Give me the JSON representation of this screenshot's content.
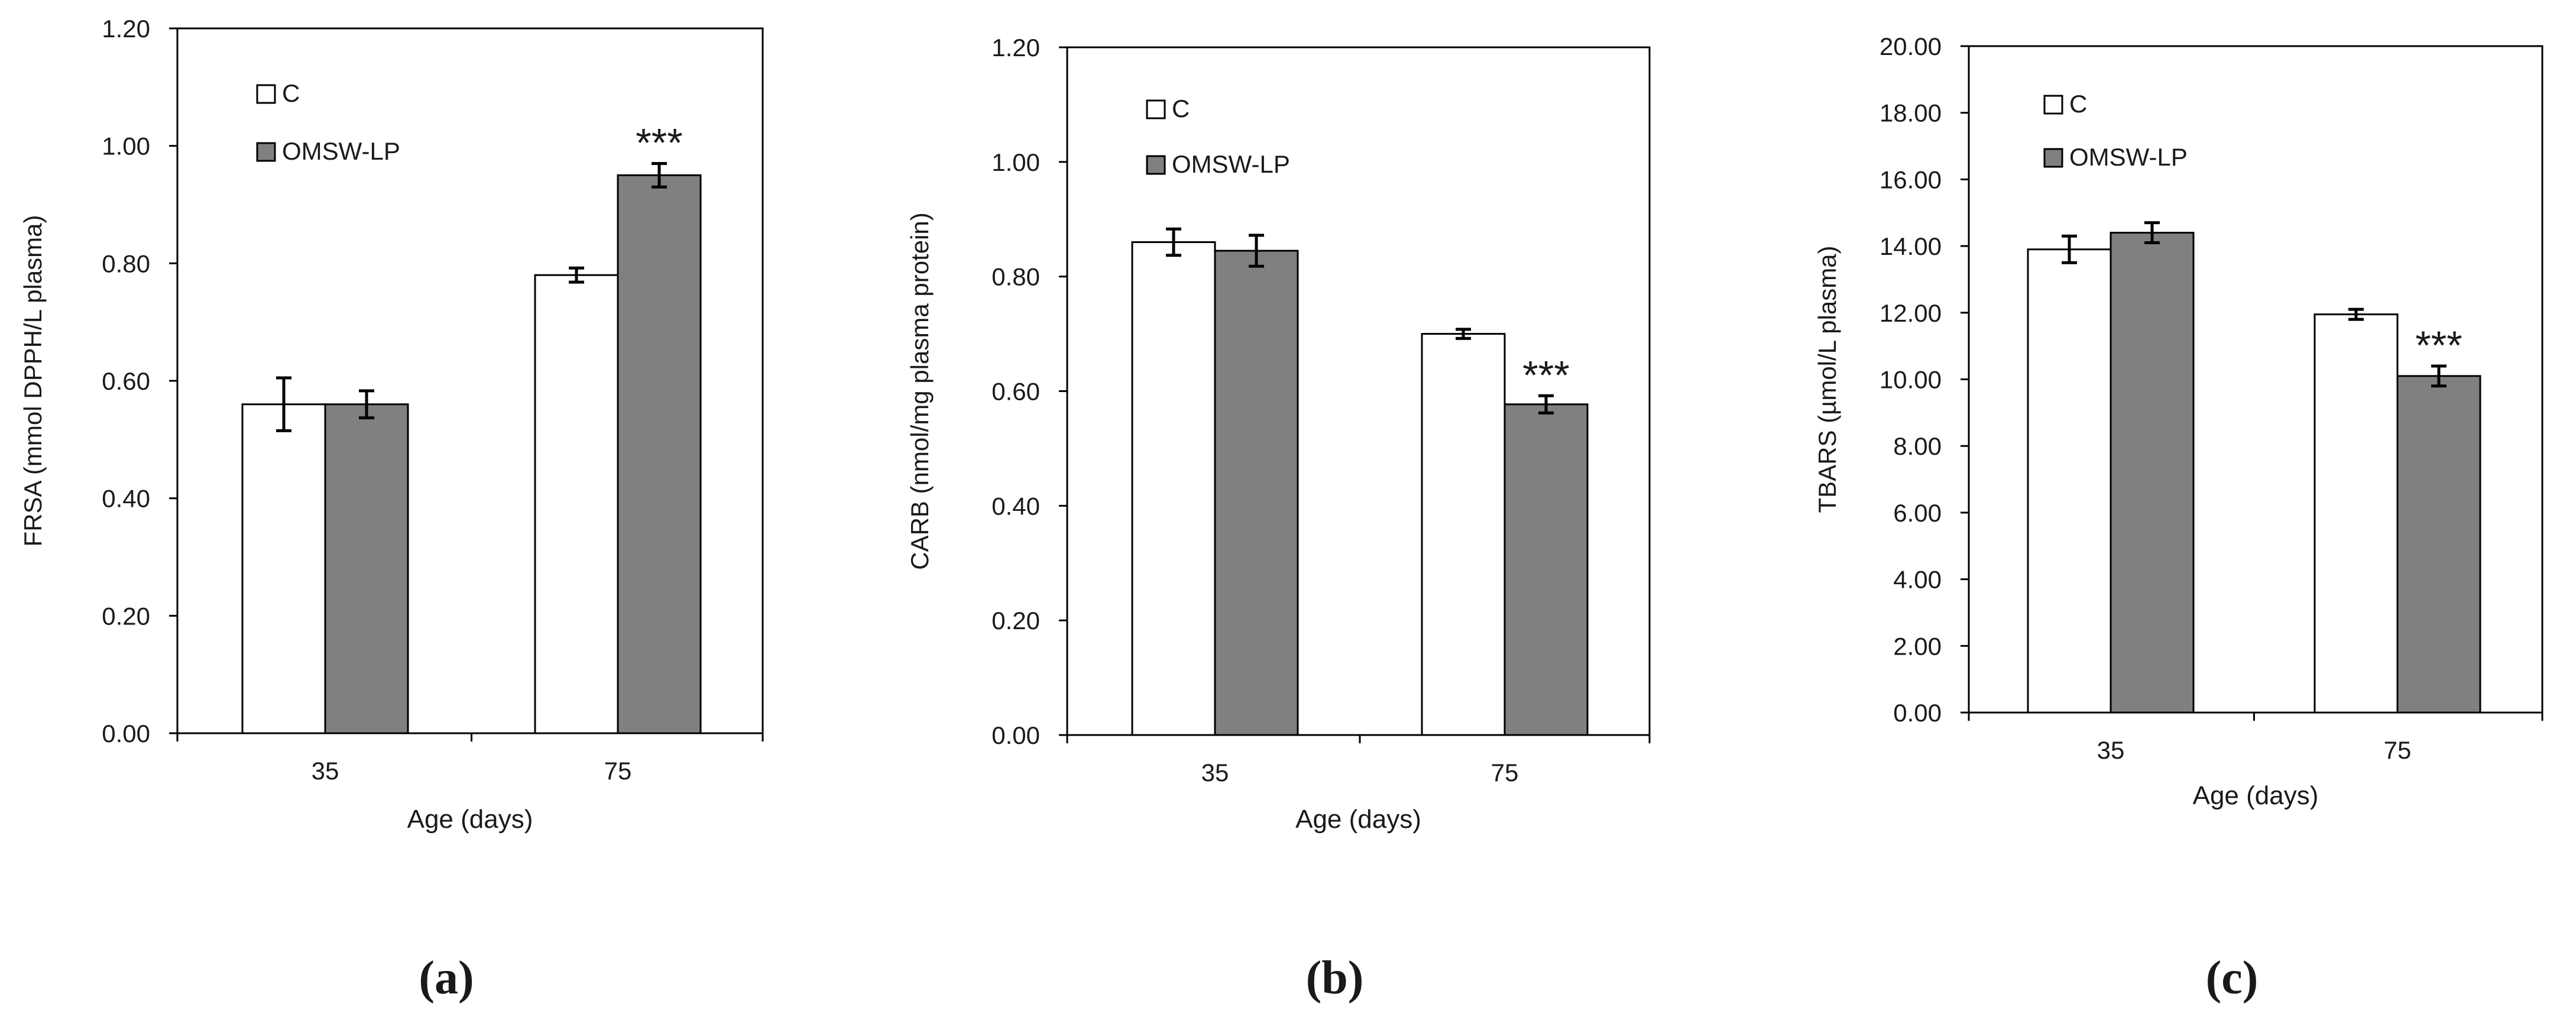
{
  "colors": {
    "control": "#ffffff",
    "treated": "#808080",
    "stroke": "#000000"
  },
  "chart_data": [
    {
      "type": "bar",
      "panel_label": "(a)",
      "categories": [
        "35",
        "75"
      ],
      "series": [
        {
          "name": "C",
          "values": [
            0.56,
            0.78
          ],
          "errors": [
            0.045,
            0.012
          ]
        },
        {
          "name": "OMSW-LP",
          "values": [
            0.56,
            0.95
          ],
          "errors": [
            0.023,
            0.02
          ]
        }
      ],
      "significance": [
        {
          "category_index": 1,
          "series_index": 1,
          "label": "***"
        }
      ],
      "xlabel": "Age (days)",
      "ylabel": "FRSA (mmol DPPH/L plasma)",
      "ylim": [
        0,
        1.2
      ],
      "yticks": [
        "0.00",
        "0.20",
        "0.40",
        "0.60",
        "0.80",
        "1.00",
        "1.20"
      ],
      "grid": false,
      "legend": "top-left"
    },
    {
      "type": "bar",
      "panel_label": "(b)",
      "categories": [
        "35",
        "75"
      ],
      "series": [
        {
          "name": "C",
          "values": [
            0.86,
            0.7
          ],
          "errors": [
            0.023,
            0.008
          ]
        },
        {
          "name": "OMSW-LP",
          "values": [
            0.845,
            0.577
          ],
          "errors": [
            0.027,
            0.015
          ]
        }
      ],
      "significance": [
        {
          "category_index": 1,
          "series_index": 1,
          "label": "***"
        }
      ],
      "xlabel": "Age (days)",
      "ylabel": "CARB (nmol/mg plasma protein)",
      "ylim": [
        0,
        1.2
      ],
      "yticks": [
        "0.00",
        "0.20",
        "0.40",
        "0.60",
        "0.80",
        "1.00",
        "1.20"
      ],
      "grid": false,
      "legend": "top-left"
    },
    {
      "type": "bar",
      "panel_label": "(c)",
      "categories": [
        "35",
        "75"
      ],
      "series": [
        {
          "name": "C",
          "values": [
            13.9,
            11.95
          ],
          "errors": [
            0.4,
            0.15
          ]
        },
        {
          "name": "OMSW-LP",
          "values": [
            14.4,
            10.1
          ],
          "errors": [
            0.3,
            0.3
          ]
        }
      ],
      "significance": [
        {
          "category_index": 1,
          "series_index": 1,
          "label": "***"
        }
      ],
      "xlabel": "Age (days)",
      "ylabel": "TBARS (µmol/L plasma)",
      "ylim": [
        0,
        20
      ],
      "yticks": [
        "0.00",
        "2.00",
        "4.00",
        "6.00",
        "8.00",
        "10.00",
        "12.00",
        "14.00",
        "16.00",
        "18.00",
        "20.00"
      ],
      "grid": false,
      "legend": "top-left"
    }
  ]
}
